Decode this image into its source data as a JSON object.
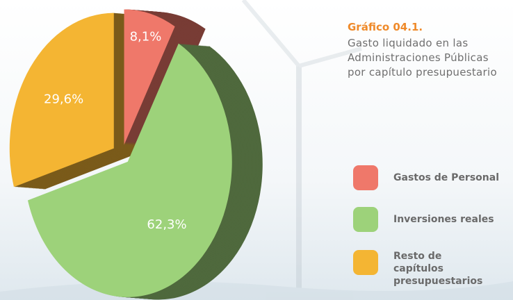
{
  "chart_data": {
    "type": "pie",
    "title": "Gráfico 04.1.",
    "subtitle": "Gasto liquidado en las Administraciones Públicas por capítulo presupuestario",
    "categories": [
      "Gastos de Personal",
      "Inversiones reales",
      "Resto de capítulos presupuestarios"
    ],
    "values": [
      8.1,
      62.3,
      29.6
    ],
    "value_labels": [
      "8,1%",
      "62,3%",
      "29,6%"
    ],
    "colors": [
      "#ef786a",
      "#9dd27a",
      "#f4b533"
    ]
  }
}
